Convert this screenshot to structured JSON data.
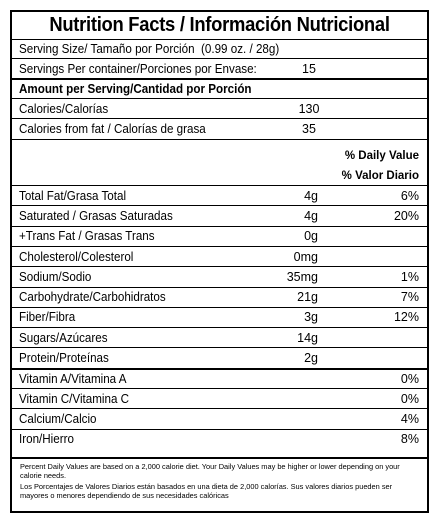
{
  "title": "Nutrition Facts / Información Nutricional",
  "serving_size": {
    "label": "Serving Size/ Tamaño por Porción",
    "value": "(0.99 oz. / 28g)"
  },
  "servings": {
    "label": "Servings Per container/Porciones por Envase:",
    "value": "15"
  },
  "amount_header": "Amount per Serving/Cantidad por Porción",
  "calories": {
    "label": "Calories/Calorías",
    "value": "130"
  },
  "calories_fat": {
    "label": "Calories from fat / Calorías de grasa",
    "value": "35"
  },
  "dv_header": {
    "line1": "% Daily Value",
    "line2": "% Valor Diario"
  },
  "nutrients": [
    {
      "label": "Total Fat/Grasa Total",
      "amount": "4g",
      "dv": "6%"
    },
    {
      "label": "Saturated / Grasas Saturadas",
      "amount": "4g",
      "dv": "20%"
    },
    {
      "label": "+Trans Fat / Grasas Trans",
      "amount": "0g",
      "dv": ""
    },
    {
      "label": "Cholesterol/Colesterol",
      "amount": "0mg",
      "dv": ""
    },
    {
      "label": "Sodium/Sodio",
      "amount": "35mg",
      "dv": "1%"
    },
    {
      "label": "Carbohydrate/Carbohidratos",
      "amount": "21g",
      "dv": "7%"
    },
    {
      "label": "Fiber/Fibra",
      "amount": "3g",
      "dv": "12%"
    },
    {
      "label": "Sugars/Azúcares",
      "amount": "14g",
      "dv": ""
    },
    {
      "label": "Protein/Proteínas",
      "amount": "2g",
      "dv": ""
    }
  ],
  "vitamins": [
    {
      "label": "Vitamin A/Vitamina A",
      "dv": "0%"
    },
    {
      "label": "Vitamin C/Vitamina C",
      "dv": "0%"
    },
    {
      "label": "Calcium/Calcio",
      "dv": "4%"
    },
    {
      "label": "Iron/Hierro",
      "dv": "8%"
    }
  ],
  "footnote_en": "Percent Daily Values are based on a 2,000 calorie diet. Your Daily Values may be higher or lower depending on your calorie needs.",
  "footnote_es": "Los Porcentajes de Valores Diarios están basados en una dieta de 2,000 calorías. Sus valores diarios pueden ser mayores o menores dependiendo de sus necesidades calóricas"
}
